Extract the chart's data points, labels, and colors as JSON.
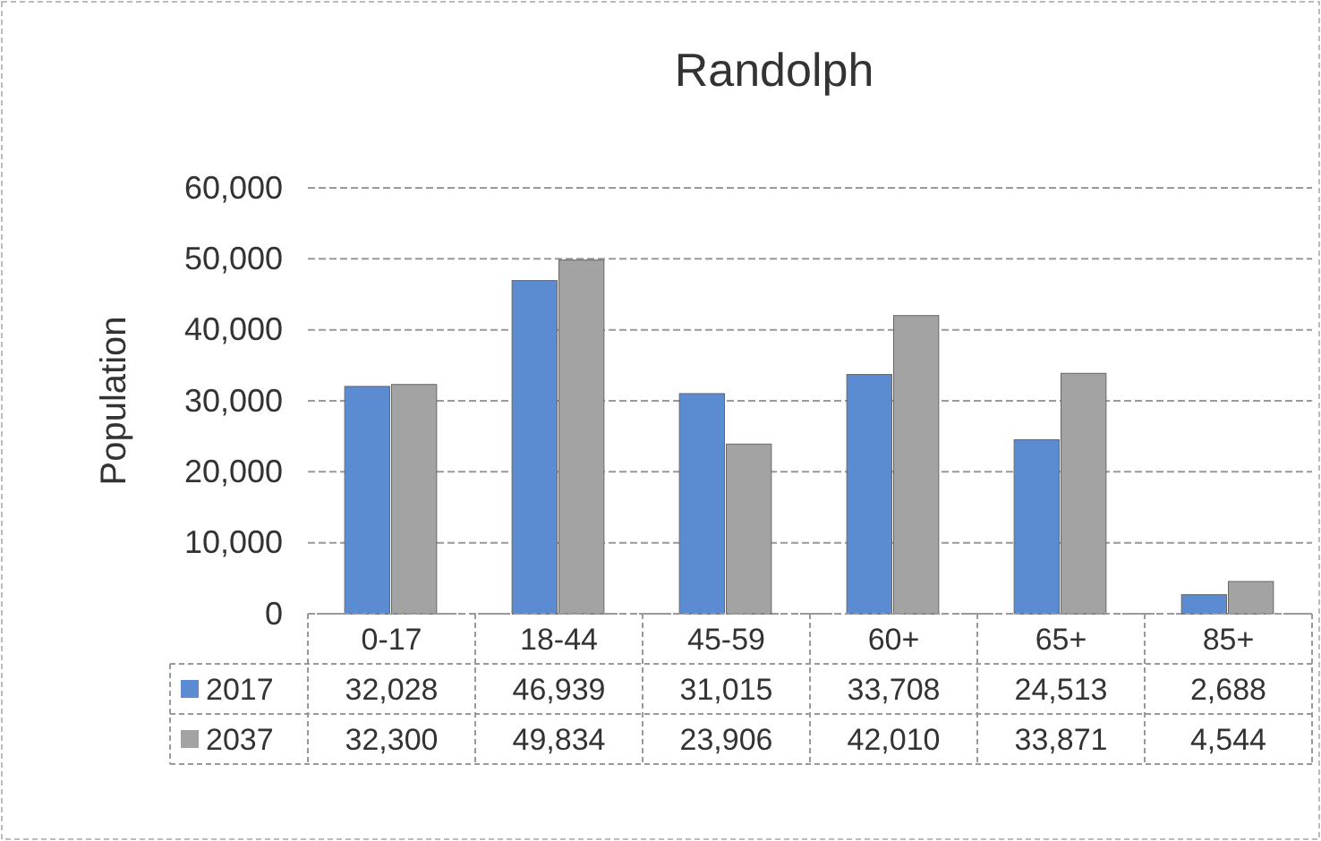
{
  "chart_data": {
    "type": "bar",
    "title": "Randolph",
    "ylabel": "Population",
    "categories": [
      "0-17",
      "18-44",
      "45-59",
      "60+",
      "65+",
      "85+"
    ],
    "series": [
      {
        "name": "2017",
        "color": "#5b8bd0",
        "values": [
          32028,
          46939,
          31015,
          33708,
          24513,
          2688
        ],
        "value_labels": [
          "32,028",
          "46,939",
          "31,015",
          "33,708",
          "24,513",
          "2,688"
        ]
      },
      {
        "name": "2037",
        "color": "#a3a3a3",
        "values": [
          32300,
          49834,
          23906,
          42010,
          33871,
          4544
        ],
        "value_labels": [
          "32,300",
          "49,834",
          "23,906",
          "42,010",
          "33,871",
          "4,544"
        ]
      }
    ],
    "ylim": [
      0,
      60000
    ],
    "yticks": [
      {
        "value": 0,
        "label": "0"
      },
      {
        "value": 10000,
        "label": "10,000"
      },
      {
        "value": 20000,
        "label": "20,000"
      },
      {
        "value": 30000,
        "label": "30,000"
      },
      {
        "value": 40000,
        "label": "40,000"
      },
      {
        "value": 50000,
        "label": "50,000"
      },
      {
        "value": 60000,
        "label": "60,000"
      }
    ],
    "grid": "y",
    "legend": "bottom"
  }
}
